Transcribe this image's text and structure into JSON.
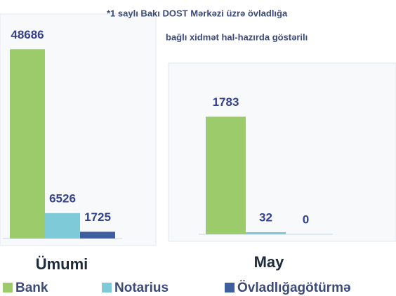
{
  "annotation": [
    "*1 saylı Bakı DOST Mərkəzi üzrə övladlığa",
    "bağlı xidmət hal-hazırda göstərilı"
  ],
  "legend": [
    {
      "name": "Bank",
      "color": "#9bcb6b"
    },
    {
      "name": "Notarius",
      "color": "#7ecad8"
    },
    {
      "name": "Övladlığagötürmə",
      "color": "#3e5f9f"
    }
  ],
  "chart_data": [
    {
      "type": "bar",
      "title": "Ümumi",
      "values": [
        48686,
        6526,
        1725
      ],
      "ylim": [
        0,
        50000
      ]
    },
    {
      "type": "bar",
      "title": "May",
      "values": [
        1783,
        32,
        0
      ],
      "ylim": [
        0,
        2000
      ]
    }
  ]
}
